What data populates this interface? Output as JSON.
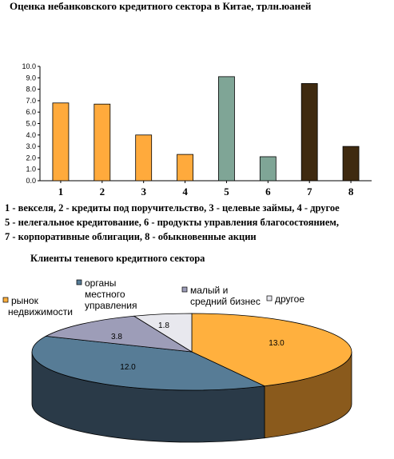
{
  "chart_data": [
    {
      "type": "bar",
      "title": "Оценка небанковского кредитного сектора в Китае, трлн.юаней",
      "categories": [
        "1",
        "2",
        "3",
        "4",
        "5",
        "6",
        "7",
        "8"
      ],
      "values": [
        6.8,
        6.7,
        4.0,
        2.3,
        9.1,
        2.1,
        8.5,
        3.0
      ],
      "colors": [
        "#FFAA3C",
        "#FFAA3C",
        "#FFAA3C",
        "#FFAA3C",
        "#7FA596",
        "#7FA596",
        "#3F2A10",
        "#3F2A10"
      ],
      "ylim": [
        0,
        10
      ],
      "yticks": [
        "0.0",
        "1.0",
        "2.0",
        "3.0",
        "4.0",
        "5.0",
        "6.0",
        "7.0",
        "8.0",
        "9.0",
        "10.0"
      ],
      "xlabel": "",
      "ylabel": "",
      "notes": [
        "1 - векселя, 2 - кредиты под поручительство, 3 - целевые займы, 4 - другое",
        "5 - нелегальное кредитование, 6 -  продукты управления благосостоянием,",
        "7 - корпоративные облигации, 8 - обыкновенные акции"
      ]
    },
    {
      "type": "pie",
      "title": "Клиенты теневого кредитного сектора",
      "slices": [
        {
          "label": "рынок недвижимости",
          "label_lines": [
            "рынок",
            "недвижимости"
          ],
          "value": 13.0,
          "value_text": "13.0",
          "color": "#FFB03E",
          "side_color": "#8A5A1C"
        },
        {
          "label": "органы местного управления",
          "label_lines": [
            "органы",
            "местного",
            "управления"
          ],
          "value": 12.0,
          "value_text": "12.0",
          "color": "#577C96",
          "side_color": "#2A3A48"
        },
        {
          "label": "малый и средний бизнес",
          "label_lines": [
            "малый и",
            "средний бизнес"
          ],
          "value": 3.8,
          "value_text": "3.8",
          "color": "#9D9DB8",
          "side_color": "#55556C"
        },
        {
          "label": "другое",
          "label_lines": [
            "другое"
          ],
          "value": 1.8,
          "value_text": "1.8",
          "color": "#E8E8EE",
          "side_color": "#9A9AA4"
        }
      ],
      "legend": "top"
    }
  ]
}
